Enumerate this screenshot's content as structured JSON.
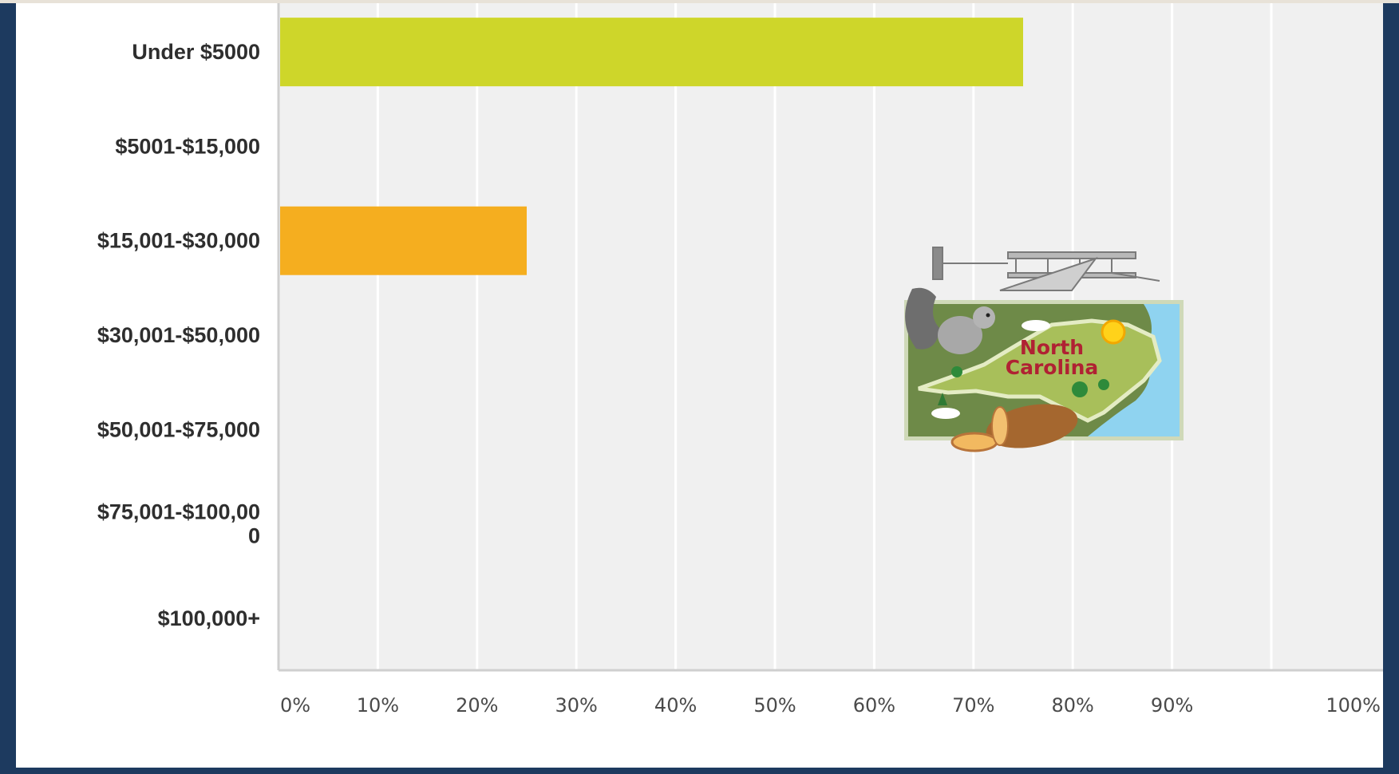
{
  "chart_data": {
    "type": "bar",
    "orientation": "horizontal",
    "categories": [
      "Under $5000",
      "$5001-$15,000",
      "$15,001-$30,000",
      "$30,001-$50,000",
      "$50,001-$75,000",
      "$75,001-$100,000",
      "$100,000+"
    ],
    "category_lines": [
      [
        "Under $5000"
      ],
      [
        "$5001-$15,000"
      ],
      [
        "$15,001-$30,000"
      ],
      [
        "$30,001-$50,000"
      ],
      [
        "$50,001-$75,000"
      ],
      [
        "$75,001-$100,00",
        "0"
      ],
      [
        "$100,000+"
      ]
    ],
    "values": [
      75,
      0,
      25,
      0,
      0,
      0,
      0
    ],
    "bar_colors": [
      "#ced62a",
      "#f5ae1f",
      "#f5ae1f",
      "#f5ae1f",
      "#f5ae1f",
      "#f5ae1f",
      "#f5ae1f"
    ],
    "xlim": [
      0,
      100
    ],
    "x_ticks": [
      0,
      10,
      20,
      30,
      40,
      50,
      60,
      70,
      80,
      90,
      100
    ],
    "x_tick_labels": [
      "0%",
      "10%",
      "20%",
      "30%",
      "40%",
      "50%",
      "60%",
      "70%",
      "80%",
      "90%",
      "100%"
    ],
    "grid": true,
    "plot_background": "#f0f0f0",
    "title": "",
    "xlabel": "",
    "ylabel": ""
  },
  "illustration": {
    "name": "north-carolina-clipart",
    "label_lines": [
      "North",
      "Carolina"
    ]
  },
  "colors": {
    "frame": "#1d3a5f",
    "gridline": "#ffffff",
    "axis": "#cfcfcf"
  }
}
